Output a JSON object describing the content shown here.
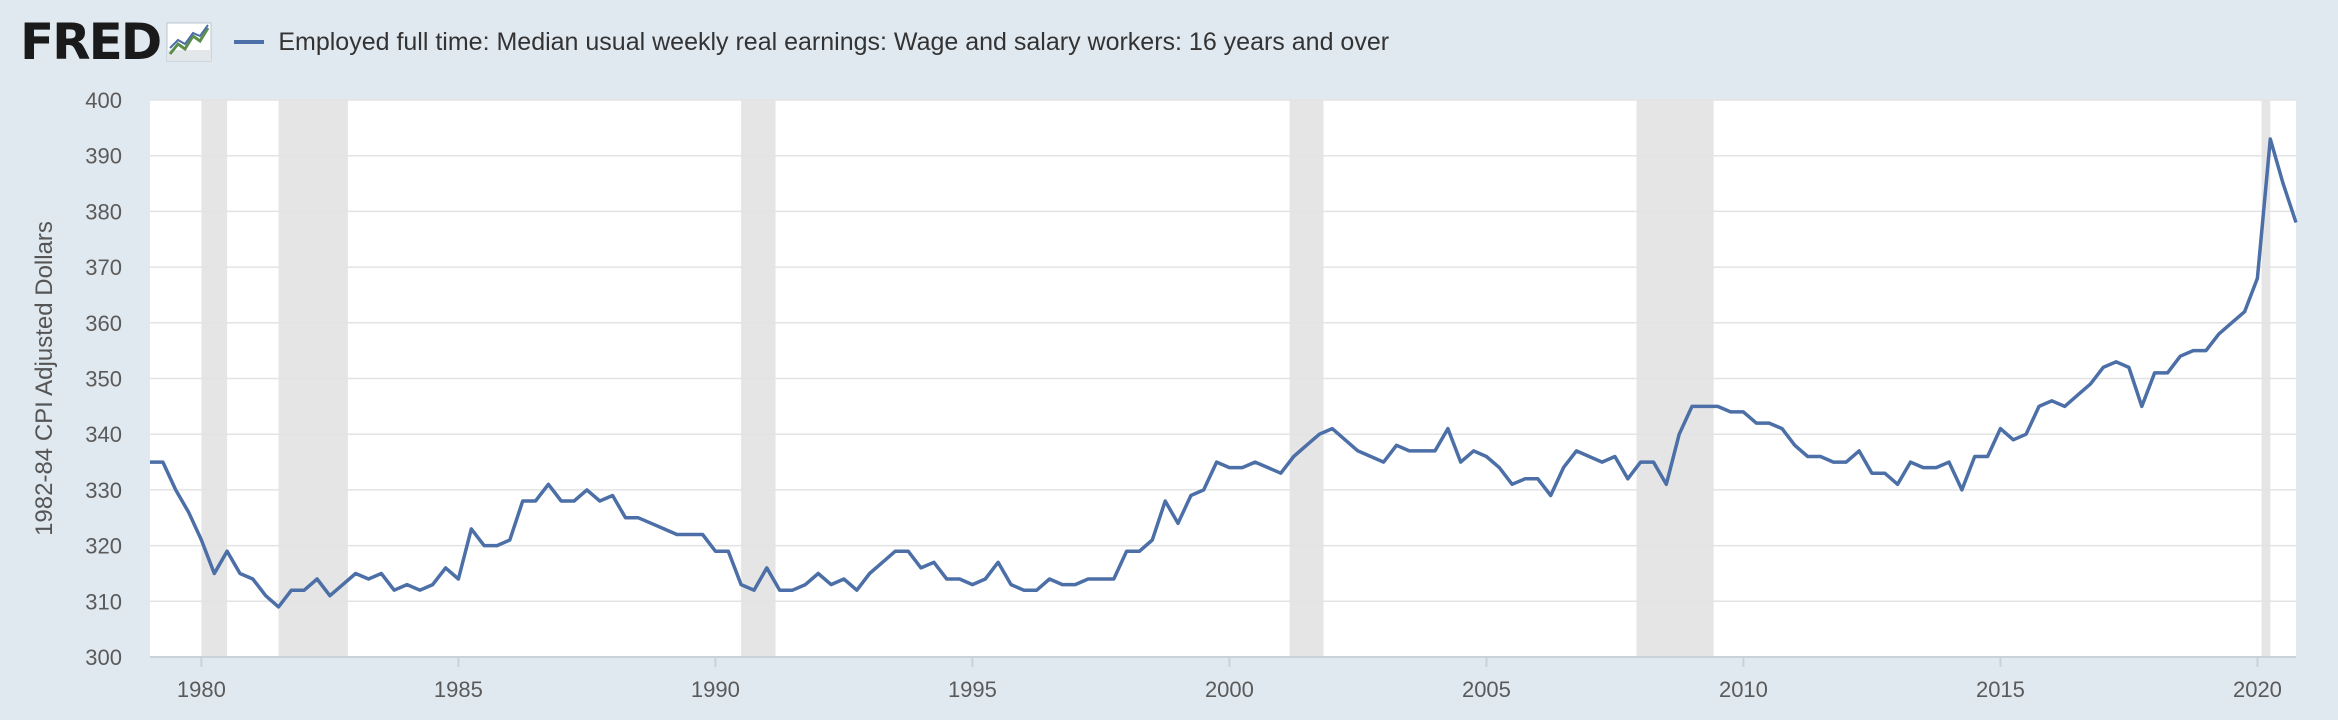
{
  "header": {
    "logo_text": "FRED",
    "logo_icon": "fred-chart-icon",
    "legend_label": "Employed full time: Median usual weekly real earnings: Wage and salary workers: 16 years and over"
  },
  "colors": {
    "series": "#4b6fa6",
    "recession": "#e5e5e5",
    "background": "#e1e9f0",
    "plot": "#ffffff",
    "grid": "#e3e3e3"
  },
  "chart_data": {
    "type": "line",
    "title": "",
    "xlabel": "",
    "ylabel": "1982-84 CPI Adjusted Dollars",
    "xlim": [
      1979.0,
      2020.75
    ],
    "ylim": [
      300,
      400
    ],
    "grid": true,
    "legend_position": "top",
    "x_ticks": [
      1980,
      1985,
      1990,
      1995,
      2000,
      2005,
      2010,
      2015,
      2020
    ],
    "y_ticks": [
      300,
      310,
      320,
      330,
      340,
      350,
      360,
      370,
      380,
      390,
      400
    ],
    "recessions": [
      [
        1980.0,
        1980.5
      ],
      [
        1981.5,
        1982.85
      ],
      [
        1990.5,
        1991.17
      ],
      [
        2001.17,
        2001.83
      ],
      [
        2007.92,
        2009.42
      ],
      [
        2020.08,
        2020.25
      ]
    ],
    "series": [
      {
        "name": "Employed full time: Median usual weekly real earnings: Wage and salary workers: 16 years and over",
        "values": [
          [
            1979.0,
            335
          ],
          [
            1979.25,
            335
          ],
          [
            1979.5,
            330
          ],
          [
            1979.75,
            326
          ],
          [
            1980.0,
            321
          ],
          [
            1980.25,
            315
          ],
          [
            1980.5,
            319
          ],
          [
            1980.75,
            315
          ],
          [
            1981.0,
            314
          ],
          [
            1981.25,
            311
          ],
          [
            1981.5,
            309
          ],
          [
            1981.75,
            312
          ],
          [
            1982.0,
            312
          ],
          [
            1982.25,
            314
          ],
          [
            1982.5,
            311
          ],
          [
            1982.75,
            313
          ],
          [
            1983.0,
            315
          ],
          [
            1983.25,
            314
          ],
          [
            1983.5,
            315
          ],
          [
            1983.75,
            312
          ],
          [
            1984.0,
            313
          ],
          [
            1984.25,
            312
          ],
          [
            1984.5,
            313
          ],
          [
            1984.75,
            316
          ],
          [
            1985.0,
            314
          ],
          [
            1985.25,
            323
          ],
          [
            1985.5,
            320
          ],
          [
            1985.75,
            320
          ],
          [
            1986.0,
            321
          ],
          [
            1986.25,
            328
          ],
          [
            1986.5,
            328
          ],
          [
            1986.75,
            331
          ],
          [
            1987.0,
            328
          ],
          [
            1987.25,
            328
          ],
          [
            1987.5,
            330
          ],
          [
            1987.75,
            328
          ],
          [
            1988.0,
            329
          ],
          [
            1988.25,
            325
          ],
          [
            1988.5,
            325
          ],
          [
            1988.75,
            324
          ],
          [
            1989.0,
            323
          ],
          [
            1989.25,
            322
          ],
          [
            1989.5,
            322
          ],
          [
            1989.75,
            322
          ],
          [
            1990.0,
            319
          ],
          [
            1990.25,
            319
          ],
          [
            1990.5,
            313
          ],
          [
            1990.75,
            312
          ],
          [
            1991.0,
            316
          ],
          [
            1991.25,
            312
          ],
          [
            1991.5,
            312
          ],
          [
            1991.75,
            313
          ],
          [
            1992.0,
            315
          ],
          [
            1992.25,
            313
          ],
          [
            1992.5,
            314
          ],
          [
            1992.75,
            312
          ],
          [
            1993.0,
            315
          ],
          [
            1993.25,
            317
          ],
          [
            1993.5,
            319
          ],
          [
            1993.75,
            319
          ],
          [
            1994.0,
            316
          ],
          [
            1994.25,
            317
          ],
          [
            1994.5,
            314
          ],
          [
            1994.75,
            314
          ],
          [
            1995.0,
            313
          ],
          [
            1995.25,
            314
          ],
          [
            1995.5,
            317
          ],
          [
            1995.75,
            313
          ],
          [
            1996.0,
            312
          ],
          [
            1996.25,
            312
          ],
          [
            1996.5,
            314
          ],
          [
            1996.75,
            313
          ],
          [
            1997.0,
            313
          ],
          [
            1997.25,
            314
          ],
          [
            1997.5,
            314
          ],
          [
            1997.75,
            314
          ],
          [
            1998.0,
            319
          ],
          [
            1998.25,
            319
          ],
          [
            1998.5,
            321
          ],
          [
            1998.75,
            328
          ],
          [
            1999.0,
            324
          ],
          [
            1999.25,
            329
          ],
          [
            1999.5,
            330
          ],
          [
            1999.75,
            335
          ],
          [
            2000.0,
            334
          ],
          [
            2000.25,
            334
          ],
          [
            2000.5,
            335
          ],
          [
            2000.75,
            334
          ],
          [
            2001.0,
            333
          ],
          [
            2001.25,
            336
          ],
          [
            2001.5,
            338
          ],
          [
            2001.75,
            340
          ],
          [
            2002.0,
            341
          ],
          [
            2002.25,
            339
          ],
          [
            2002.5,
            337
          ],
          [
            2002.75,
            336
          ],
          [
            2003.0,
            335
          ],
          [
            2003.25,
            338
          ],
          [
            2003.5,
            337
          ],
          [
            2003.75,
            337
          ],
          [
            2004.0,
            337
          ],
          [
            2004.25,
            341
          ],
          [
            2004.5,
            335
          ],
          [
            2004.75,
            337
          ],
          [
            2005.0,
            336
          ],
          [
            2005.25,
            334
          ],
          [
            2005.5,
            331
          ],
          [
            2005.75,
            332
          ],
          [
            2006.0,
            332
          ],
          [
            2006.25,
            329
          ],
          [
            2006.5,
            334
          ],
          [
            2006.75,
            337
          ],
          [
            2007.0,
            336
          ],
          [
            2007.25,
            335
          ],
          [
            2007.5,
            336
          ],
          [
            2007.75,
            332
          ],
          [
            2008.0,
            335
          ],
          [
            2008.25,
            335
          ],
          [
            2008.5,
            331
          ],
          [
            2008.75,
            340
          ],
          [
            2009.0,
            345
          ],
          [
            2009.25,
            345
          ],
          [
            2009.5,
            345
          ],
          [
            2009.75,
            344
          ],
          [
            2010.0,
            344
          ],
          [
            2010.25,
            342
          ],
          [
            2010.5,
            342
          ],
          [
            2010.75,
            341
          ],
          [
            2011.0,
            338
          ],
          [
            2011.25,
            336
          ],
          [
            2011.5,
            336
          ],
          [
            2011.75,
            335
          ],
          [
            2012.0,
            335
          ],
          [
            2012.25,
            337
          ],
          [
            2012.5,
            333
          ],
          [
            2012.75,
            333
          ],
          [
            2013.0,
            331
          ],
          [
            2013.25,
            335
          ],
          [
            2013.5,
            334
          ],
          [
            2013.75,
            334
          ],
          [
            2014.0,
            335
          ],
          [
            2014.25,
            330
          ],
          [
            2014.5,
            336
          ],
          [
            2014.75,
            336
          ],
          [
            2015.0,
            341
          ],
          [
            2015.25,
            339
          ],
          [
            2015.5,
            340
          ],
          [
            2015.75,
            345
          ],
          [
            2016.0,
            346
          ],
          [
            2016.25,
            345
          ],
          [
            2016.5,
            347
          ],
          [
            2016.75,
            349
          ],
          [
            2017.0,
            352
          ],
          [
            2017.25,
            353
          ],
          [
            2017.5,
            352
          ],
          [
            2017.75,
            345
          ],
          [
            2018.0,
            351
          ],
          [
            2018.25,
            351
          ],
          [
            2018.5,
            354
          ],
          [
            2018.75,
            355
          ],
          [
            2019.0,
            355
          ],
          [
            2019.25,
            358
          ],
          [
            2019.5,
            360
          ],
          [
            2019.75,
            362
          ],
          [
            2020.0,
            368
          ],
          [
            2020.25,
            393
          ],
          [
            2020.5,
            385
          ],
          [
            2020.75,
            378
          ]
        ]
      }
    ]
  }
}
